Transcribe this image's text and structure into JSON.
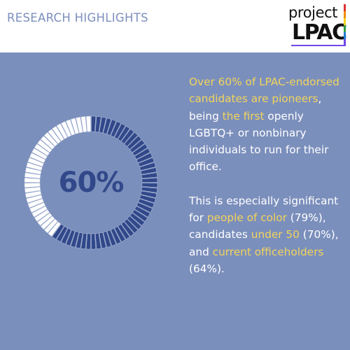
{
  "header": {
    "title": "RESEARCH HIGHLIGHTS",
    "logo_top": "project",
    "logo_bottom": "LPAC",
    "logo_stripe_colors": [
      "#e03131",
      "#f08c00",
      "#f7d21e",
      "#2f9e44",
      "#1c7ed6",
      "#7048e8"
    ]
  },
  "stat": {
    "value": "60%",
    "fraction": 0.6,
    "filled_color": "#31488a",
    "empty_color": "#ffffff"
  },
  "paragraph1": {
    "h1": "Over 60% of LPAC-endorsed candidates are pioneers",
    "t1": ", being ",
    "h2": "the first",
    "t2": " openly LGBTQ+ or nonbinary individuals to run for their office."
  },
  "paragraph2": {
    "t1": "This is especially significant for ",
    "h1": "people of color",
    "t2": " (79%), candidates ",
    "h2": "under 50",
    "t3": " (70%), and ",
    "h3": "current officeholders",
    "t4": " (64%)."
  },
  "colors": {
    "background": "#7b8fbc",
    "highlight": "#f2d45c",
    "header_text": "#7d8fbf"
  }
}
